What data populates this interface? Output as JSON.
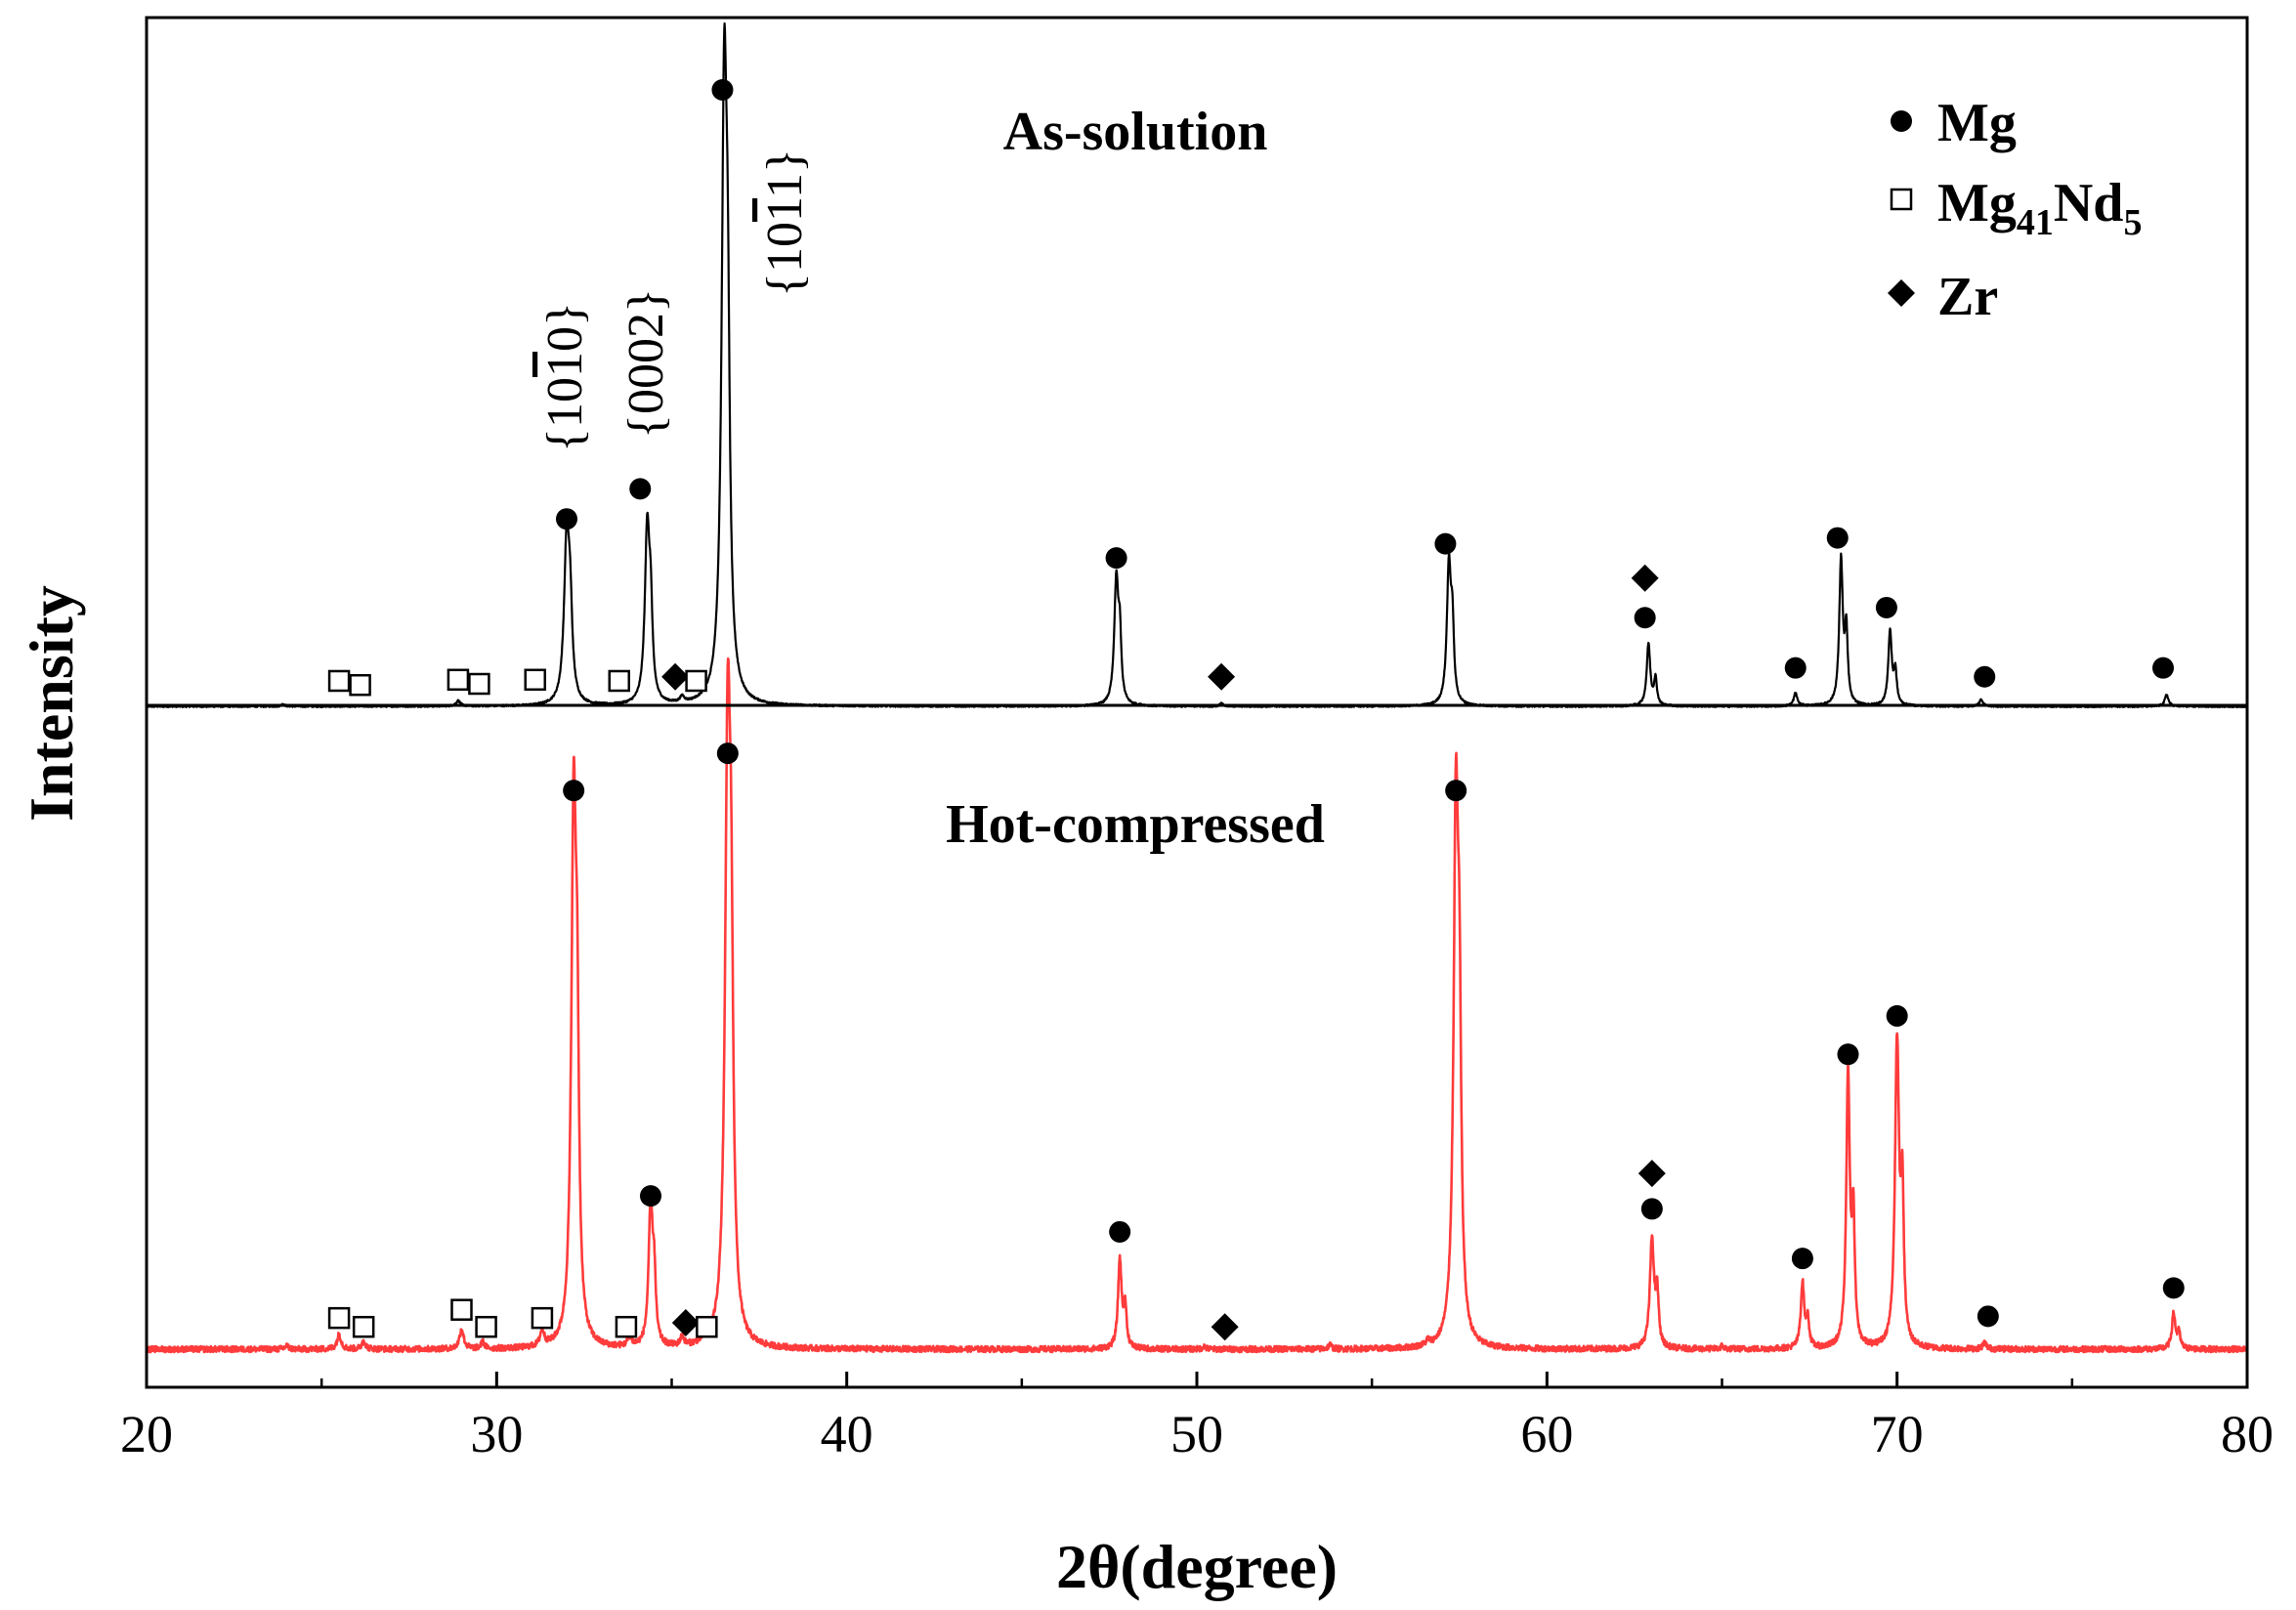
{
  "chart_data": {
    "type": "line",
    "xlabel": "2θ(degree)",
    "ylabel": "Intensity",
    "xlim": [
      20,
      80
    ],
    "xticks": [
      "20",
      "30",
      "40",
      "50",
      "60",
      "70",
      "80"
    ],
    "xtick_values": [
      20,
      30,
      40,
      50,
      60,
      70,
      80
    ],
    "legend": {
      "position": "top-right",
      "entries": [
        {
          "marker": "circle",
          "label": "Mg"
        },
        {
          "marker": "square",
          "label_base": "Mg",
          "label_sub1": "41",
          "label_mid": "Nd",
          "label_sub2": "5"
        },
        {
          "marker": "diamond",
          "label": "Zr"
        }
      ]
    },
    "panels": [
      {
        "name": "As-solution",
        "label": "As-solution",
        "color": "#000000",
        "y_range": [
          0,
          100
        ],
        "baseline": 0,
        "noise": 0.15,
        "peaks": [
          {
            "x": 23.9,
            "h": 0.4,
            "w": 0.05
          },
          {
            "x": 28.9,
            "h": 0.9,
            "w": 0.07
          },
          {
            "x": 32.0,
            "h": 27,
            "w": 0.09
          },
          {
            "x": 32.1,
            "h": 13,
            "w": 0.07
          },
          {
            "x": 34.3,
            "h": 29,
            "w": 0.08
          },
          {
            "x": 34.4,
            "h": 13,
            "w": 0.06
          },
          {
            "x": 35.3,
            "h": 1.0,
            "w": 0.07
          },
          {
            "x": 36.5,
            "h": 100,
            "w": 0.09
          },
          {
            "x": 36.6,
            "h": 44,
            "w": 0.07
          },
          {
            "x": 47.7,
            "h": 21,
            "w": 0.07
          },
          {
            "x": 47.8,
            "h": 10,
            "w": 0.05
          },
          {
            "x": 50.7,
            "h": 0.5,
            "w": 0.05
          },
          {
            "x": 57.2,
            "h": 23.5,
            "w": 0.07
          },
          {
            "x": 57.3,
            "h": 11.5,
            "w": 0.05
          },
          {
            "x": 62.9,
            "h": 10.5,
            "w": 0.06
          },
          {
            "x": 63.1,
            "h": 4.5,
            "w": 0.05
          },
          {
            "x": 67.1,
            "h": 2.2,
            "w": 0.06
          },
          {
            "x": 68.4,
            "h": 24.5,
            "w": 0.06
          },
          {
            "x": 68.55,
            "h": 12,
            "w": 0.05
          },
          {
            "x": 69.8,
            "h": 12.5,
            "w": 0.06
          },
          {
            "x": 69.95,
            "h": 5.5,
            "w": 0.05
          },
          {
            "x": 72.4,
            "h": 1.1,
            "w": 0.06
          },
          {
            "x": 77.7,
            "h": 2.0,
            "w": 0.06
          }
        ],
        "markers": [
          {
            "x": 25.5,
            "y": 4.3,
            "type": "square"
          },
          {
            "x": 26.1,
            "y": 3.6,
            "type": "square"
          },
          {
            "x": 28.9,
            "y": 4.5,
            "type": "square"
          },
          {
            "x": 29.5,
            "y": 3.8,
            "type": "square"
          },
          {
            "x": 31.1,
            "y": 4.5,
            "type": "square"
          },
          {
            "x": 33.5,
            "y": 4.3,
            "type": "square"
          },
          {
            "x": 35.1,
            "y": 5.0,
            "type": "diamond"
          },
          {
            "x": 35.7,
            "y": 4.3,
            "type": "square"
          },
          {
            "x": 32.0,
            "y": 31.7,
            "type": "circle"
          },
          {
            "x": 34.1,
            "y": 36.8,
            "type": "circle"
          },
          {
            "x": 36.45,
            "y": 104.3,
            "type": "circle"
          },
          {
            "x": 47.7,
            "y": 25.1,
            "type": "circle"
          },
          {
            "x": 50.7,
            "y": 5.0,
            "type": "diamond"
          },
          {
            "x": 57.1,
            "y": 27.5,
            "type": "circle"
          },
          {
            "x": 62.8,
            "y": 15.0,
            "type": "circle"
          },
          {
            "x": 62.8,
            "y": 21.7,
            "type": "diamond"
          },
          {
            "x": 67.1,
            "y": 6.5,
            "type": "circle"
          },
          {
            "x": 68.3,
            "y": 28.5,
            "type": "circle"
          },
          {
            "x": 69.7,
            "y": 16.7,
            "type": "circle"
          },
          {
            "x": 72.5,
            "y": 5.0,
            "type": "circle"
          },
          {
            "x": 77.6,
            "y": 6.5,
            "type": "circle"
          }
        ],
        "peak_labels": [
          {
            "x": 31.7,
            "y": 38.8,
            "text_a": "{10",
            "text_b": "1",
            "text_c": "0}",
            "bar_over": "b"
          },
          {
            "x": 34.1,
            "y": 41.5,
            "text": "{0002}"
          },
          {
            "x": 38.2,
            "y": 68.5,
            "text_a": "{10",
            "text_b": "1",
            "text_c": "1}",
            "bar_over": "b"
          }
        ]
      },
      {
        "name": "Hot-compressed",
        "label": "Hot-compressed",
        "color": "#ff3b3b",
        "y_range": [
          0,
          100
        ],
        "baseline": 0.8,
        "noise": 0.5,
        "peaks": [
          {
            "x": 24.0,
            "h": 0.6,
            "w": 0.06
          },
          {
            "x": 25.5,
            "h": 2.5,
            "w": 0.07
          },
          {
            "x": 26.2,
            "h": 1.5,
            "w": 0.06
          },
          {
            "x": 29.0,
            "h": 3.4,
            "w": 0.07
          },
          {
            "x": 29.6,
            "h": 1.1,
            "w": 0.06
          },
          {
            "x": 31.3,
            "h": 2.7,
            "w": 0.07
          },
          {
            "x": 32.2,
            "h": 89,
            "w": 0.08
          },
          {
            "x": 32.3,
            "h": 41,
            "w": 0.06
          },
          {
            "x": 33.8,
            "h": 1.5,
            "w": 0.07
          },
          {
            "x": 34.4,
            "h": 24,
            "w": 0.07
          },
          {
            "x": 34.5,
            "h": 10,
            "w": 0.05
          },
          {
            "x": 35.3,
            "h": 1.6,
            "w": 0.06
          },
          {
            "x": 36.0,
            "h": 1.6,
            "w": 0.06
          },
          {
            "x": 36.6,
            "h": 100,
            "w": 0.09
          },
          {
            "x": 36.7,
            "h": 49,
            "w": 0.07
          },
          {
            "x": 47.8,
            "h": 15,
            "w": 0.06
          },
          {
            "x": 47.95,
            "h": 7,
            "w": 0.05
          },
          {
            "x": 50.2,
            "h": 0.5,
            "w": 0.05
          },
          {
            "x": 53.8,
            "h": 0.7,
            "w": 0.06
          },
          {
            "x": 56.6,
            "h": 0.8,
            "w": 0.06
          },
          {
            "x": 57.4,
            "h": 89,
            "w": 0.08
          },
          {
            "x": 57.5,
            "h": 43,
            "w": 0.06
          },
          {
            "x": 63.0,
            "h": 18.5,
            "w": 0.07
          },
          {
            "x": 63.15,
            "h": 8.5,
            "w": 0.05
          },
          {
            "x": 65.0,
            "h": 0.5,
            "w": 0.05
          },
          {
            "x": 67.3,
            "h": 11,
            "w": 0.06
          },
          {
            "x": 67.45,
            "h": 4.5,
            "w": 0.05
          },
          {
            "x": 68.6,
            "h": 46,
            "w": 0.06
          },
          {
            "x": 68.75,
            "h": 21,
            "w": 0.05
          },
          {
            "x": 70.0,
            "h": 51.5,
            "w": 0.07
          },
          {
            "x": 70.15,
            "h": 24,
            "w": 0.05
          },
          {
            "x": 72.5,
            "h": 1.1,
            "w": 0.06
          },
          {
            "x": 77.9,
            "h": 6,
            "w": 0.06
          },
          {
            "x": 78.05,
            "h": 2.5,
            "w": 0.05
          }
        ],
        "markers": [
          {
            "x": 25.5,
            "y": 6.1,
            "type": "square"
          },
          {
            "x": 26.2,
            "y": 4.6,
            "type": "square"
          },
          {
            "x": 29.0,
            "y": 7.5,
            "type": "square"
          },
          {
            "x": 29.7,
            "y": 4.6,
            "type": "square"
          },
          {
            "x": 31.3,
            "y": 6.1,
            "type": "square"
          },
          {
            "x": 33.7,
            "y": 4.6,
            "type": "square"
          },
          {
            "x": 35.4,
            "y": 5.3,
            "type": "diamond"
          },
          {
            "x": 36.0,
            "y": 4.6,
            "type": "square"
          },
          {
            "x": 32.2,
            "y": 95.5,
            "type": "circle"
          },
          {
            "x": 34.4,
            "y": 26.8,
            "type": "circle"
          },
          {
            "x": 36.6,
            "y": 101.8,
            "type": "circle"
          },
          {
            "x": 47.8,
            "y": 20.7,
            "type": "circle"
          },
          {
            "x": 50.8,
            "y": 4.6,
            "type": "diamond"
          },
          {
            "x": 57.4,
            "y": 95.5,
            "type": "circle"
          },
          {
            "x": 63.0,
            "y": 24.6,
            "type": "circle"
          },
          {
            "x": 63.0,
            "y": 30.6,
            "type": "diamond"
          },
          {
            "x": 67.3,
            "y": 16.2,
            "type": "circle"
          },
          {
            "x": 68.6,
            "y": 50.8,
            "type": "circle"
          },
          {
            "x": 70.0,
            "y": 57.3,
            "type": "circle"
          },
          {
            "x": 72.6,
            "y": 6.4,
            "type": "circle"
          },
          {
            "x": 77.9,
            "y": 11.2,
            "type": "circle"
          }
        ]
      }
    ]
  }
}
